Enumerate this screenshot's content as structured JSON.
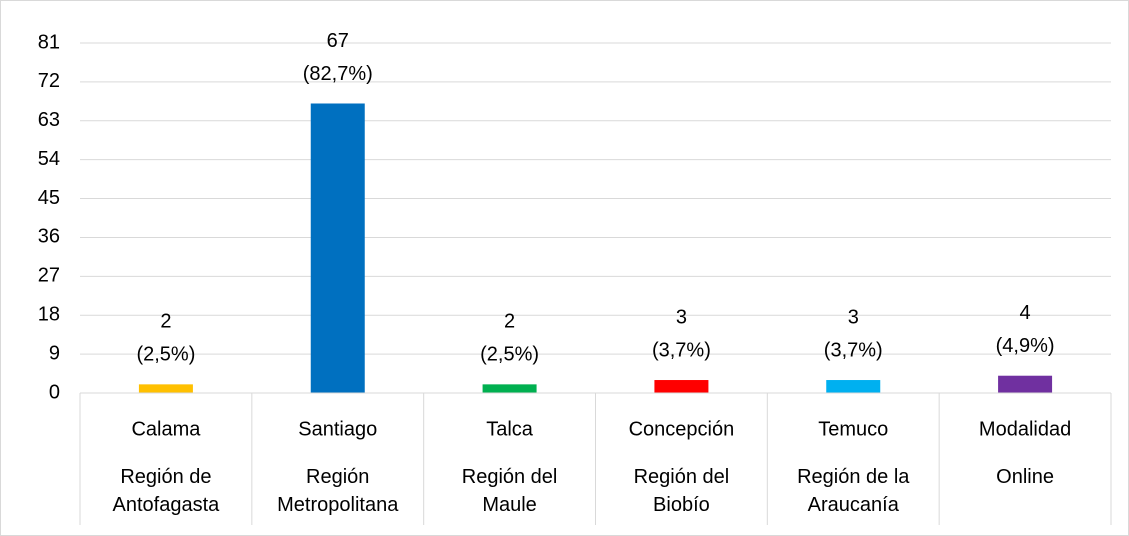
{
  "chart_data": {
    "type": "bar",
    "categories": [
      "Calama",
      "Santiago",
      "Talca",
      "Concepción",
      "Temuco",
      "Modalidad"
    ],
    "subcategories": [
      "Región de Antofagasta",
      "Región Metropolitana",
      "Región del Maule",
      "Región del Biobío",
      "Región de la Araucanía",
      "Online"
    ],
    "values": [
      2,
      67,
      2,
      3,
      3,
      4
    ],
    "share_labels": [
      "(2,5%)",
      "(82,7%)",
      "(2,5%)",
      "(3,7%)",
      "(3,7%)",
      "(4,9%)"
    ],
    "colors": [
      "#ffc000",
      "#0070c0",
      "#00b050",
      "#ff0000",
      "#00b0f0",
      "#7030a0"
    ],
    "ylim": [
      0,
      81
    ],
    "yticks": [
      0,
      9,
      18,
      27,
      36,
      45,
      54,
      63,
      72,
      81
    ],
    "grid": true
  }
}
